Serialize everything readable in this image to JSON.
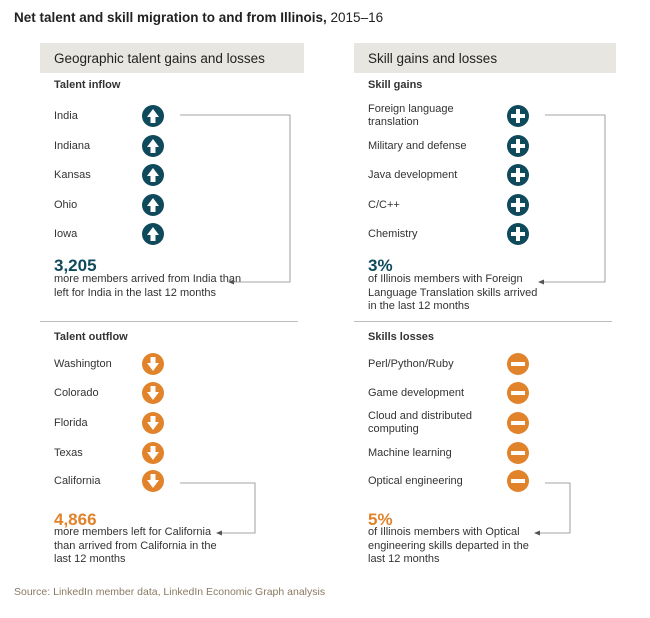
{
  "title_bold": "Net talent and skill migration to and from Illinois,",
  "title_rest": " 2015–16",
  "colors": {
    "inflow": "#0f4a5c",
    "outflow": "#e0832b",
    "panel": "#e8e6e0"
  },
  "left_panel": {
    "header": "Geographic talent gains and losses",
    "inflow": {
      "heading": "Talent inflow",
      "items": [
        "India",
        "Indiana",
        "Kansas",
        "Ohio",
        "Iowa"
      ],
      "icon": "arrow-up-icon",
      "number": "3,205",
      "desc": "more members arrived from India than left for India in the last 12 months"
    },
    "outflow": {
      "heading": "Talent outflow",
      "items": [
        "Washington",
        "Colorado",
        "Florida",
        "Texas",
        "California"
      ],
      "icon": "arrow-down-icon",
      "number": "4,866",
      "desc": "more members left for California than arrived from California in the last 12 months"
    }
  },
  "right_panel": {
    "header": "Skill gains and losses",
    "gains": {
      "heading": "Skill gains",
      "items": [
        "Foreign language translation",
        "Military and defense",
        "Java development",
        "C/C++",
        "Chemistry"
      ],
      "icon": "plus-icon",
      "number": "3%",
      "desc": "of Illinois members with Foreign Language Translation skills arrived in the last 12 months"
    },
    "losses": {
      "heading": "Skills losses",
      "items": [
        "Perl/Python/Ruby",
        "Game development",
        "Cloud and distributed computing",
        "Machine learning",
        "Optical engineering"
      ],
      "icon": "minus-icon",
      "number": "5%",
      "desc": "of Illinois members with Optical engineering skills departed in the last 12 months"
    }
  },
  "source": "Source: LinkedIn member data, LinkedIn Economic Graph analysis",
  "chart_data": {
    "type": "table",
    "title": "Net talent and skill migration to and from Illinois, 2015–16",
    "talent_inflow": [
      "India",
      "Indiana",
      "Kansas",
      "Ohio",
      "Iowa"
    ],
    "talent_outflow": [
      "Washington",
      "Colorado",
      "Florida",
      "Texas",
      "California"
    ],
    "skill_gains": [
      "Foreign language translation",
      "Military and defense",
      "Java development",
      "C/C++",
      "Chemistry"
    ],
    "skill_losses": [
      "Perl/Python/Ruby",
      "Game development",
      "Cloud and distributed computing",
      "Machine learning",
      "Optical engineering"
    ],
    "callouts": [
      {
        "label": "India",
        "value": 3205
      },
      {
        "label": "California",
        "value": 4866
      },
      {
        "label": "Foreign language translation",
        "value": "3%"
      },
      {
        "label": "Optical engineering",
        "value": "5%"
      }
    ]
  }
}
